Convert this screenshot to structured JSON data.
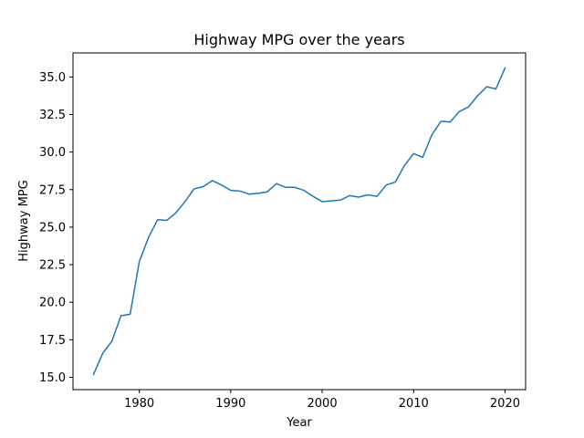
{
  "chart_data": {
    "type": "line",
    "title": "Highway MPG over the years",
    "xlabel": "Year",
    "ylabel": "Highway MPG",
    "xlim": [
      1972.75,
      2022.25
    ],
    "ylim": [
      14.18,
      36.6
    ],
    "grid": false,
    "xticks": [
      1980,
      1990,
      2000,
      2010,
      2020
    ],
    "xtick_labels": [
      "1980",
      "1990",
      "2000",
      "2010",
      "2020"
    ],
    "yticks": [
      15.0,
      17.5,
      20.0,
      22.5,
      25.0,
      27.5,
      30.0,
      32.5,
      35.0
    ],
    "ytick_labels": [
      "15.0",
      "17.5",
      "20.0",
      "22.5",
      "25.0",
      "27.5",
      "30.0",
      "32.5",
      "35.0"
    ],
    "series": [
      {
        "color": "#1f77b4",
        "x": [
          1975,
          1976,
          1977,
          1978,
          1979,
          1980,
          1981,
          1982,
          1983,
          1984,
          1985,
          1986,
          1987,
          1988,
          1989,
          1990,
          1991,
          1992,
          1993,
          1994,
          1995,
          1996,
          1997,
          1998,
          1999,
          2000,
          2001,
          2002,
          2003,
          2004,
          2005,
          2006,
          2007,
          2008,
          2009,
          2010,
          2011,
          2012,
          2013,
          2014,
          2015,
          2016,
          2017,
          2018,
          2019,
          2020
        ],
        "y": [
          15.2,
          16.6,
          17.4,
          19.1,
          19.2,
          22.7,
          24.3,
          25.5,
          25.45,
          25.95,
          26.7,
          27.55,
          27.7,
          28.1,
          27.8,
          27.45,
          27.4,
          27.2,
          27.25,
          27.35,
          27.9,
          27.65,
          27.65,
          27.45,
          27.05,
          26.7,
          26.75,
          26.8,
          27.1,
          27.0,
          27.15,
          27.05,
          27.8,
          28.0,
          29.1,
          29.9,
          29.65,
          31.15,
          32.05,
          32.0,
          32.7,
          33.0,
          33.75,
          34.35,
          34.2,
          35.6
        ]
      }
    ]
  }
}
